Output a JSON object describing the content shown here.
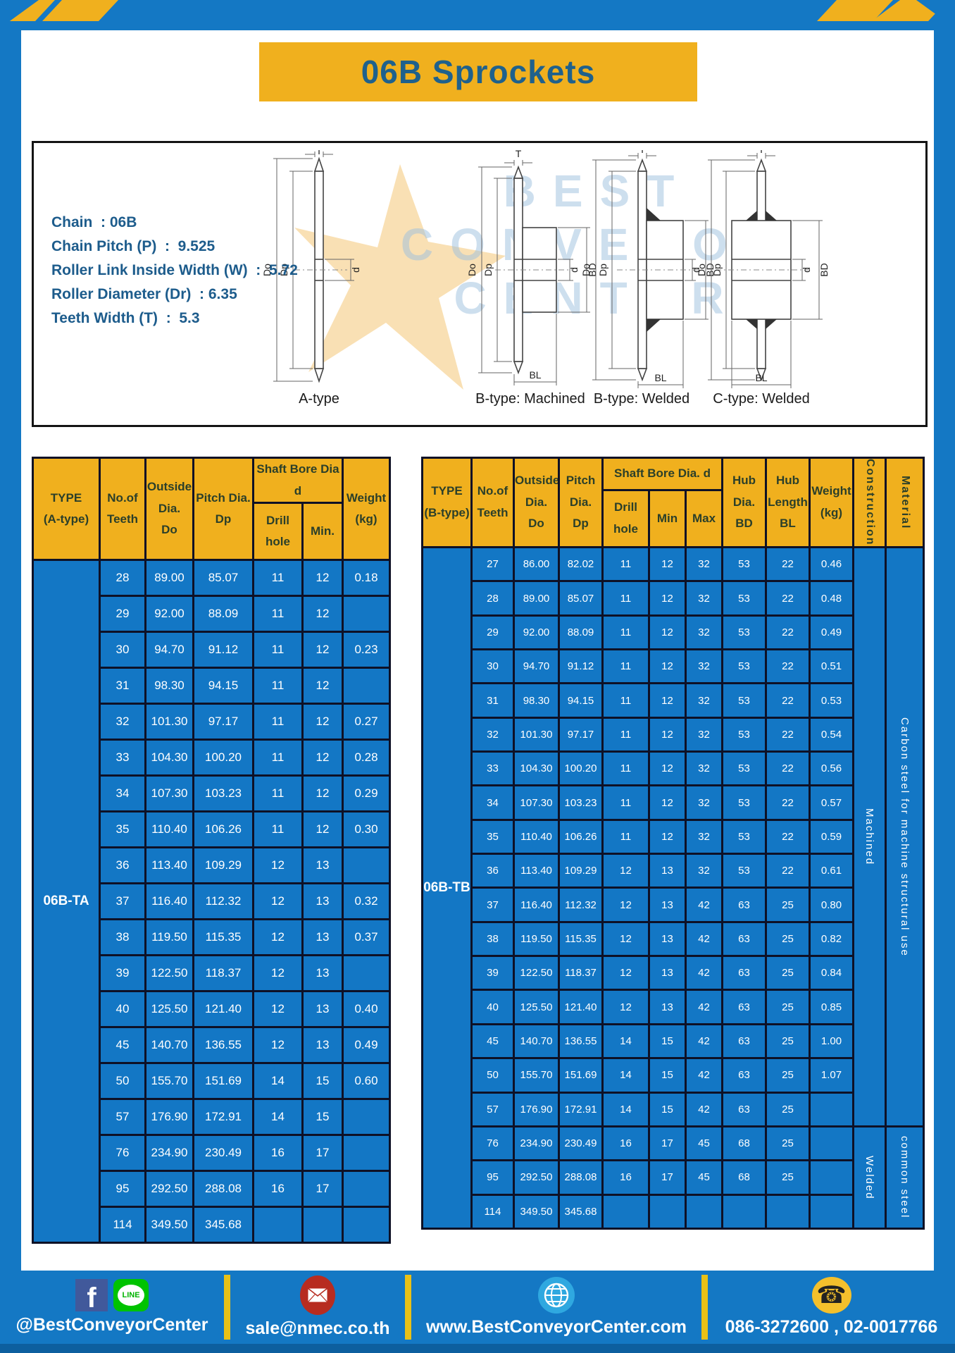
{
  "page_title": "06B Sprockets",
  "specs": {
    "lines": [
      "Chain  : 06B",
      "Chain Pitch (P)  :  9.525",
      "Roller Link Inside Width (W)  :  5.72",
      "Roller Diameter (Dr)  : 6.35",
      "Teeth Width (T)  :  5.3"
    ]
  },
  "watermark": {
    "line1": "BEST",
    "line2": "CONVEYOR",
    "line3": "CENTER"
  },
  "diagrams": {
    "labels": [
      "A-type",
      "B-type: Machined",
      "B-type: Welded",
      "C-type: Welded"
    ],
    "dims": {
      "do_label": "Do",
      "dp_label": "Dp",
      "d_label": "d",
      "bd_label": "BD",
      "bl_label": "BL",
      "t_label": "T"
    }
  },
  "table_a": {
    "type_label": "06B-TA",
    "headers": {
      "type": "TYPE\n(A-type)",
      "teeth": "No.of\nTeeth",
      "outside": "Outside\nDia.\nDo",
      "pitch": "Pitch Dia.\nDp",
      "shaft": "Shaft Bore Dia d",
      "drill": "Drill hole",
      "min": "Min.",
      "weight": "Weight\n(kg)"
    },
    "rows": [
      [
        "28",
        "89.00",
        "85.07",
        "11",
        "12",
        "0.18"
      ],
      [
        "29",
        "92.00",
        "88.09",
        "11",
        "12",
        ""
      ],
      [
        "30",
        "94.70",
        "91.12",
        "11",
        "12",
        "0.23"
      ],
      [
        "31",
        "98.30",
        "94.15",
        "11",
        "12",
        ""
      ],
      [
        "32",
        "101.30",
        "97.17",
        "11",
        "12",
        "0.27"
      ],
      [
        "33",
        "104.30",
        "100.20",
        "11",
        "12",
        "0.28"
      ],
      [
        "34",
        "107.30",
        "103.23",
        "11",
        "12",
        "0.29"
      ],
      [
        "35",
        "110.40",
        "106.26",
        "11",
        "12",
        "0.30"
      ],
      [
        "36",
        "113.40",
        "109.29",
        "12",
        "13",
        ""
      ],
      [
        "37",
        "116.40",
        "112.32",
        "12",
        "13",
        "0.32"
      ],
      [
        "38",
        "119.50",
        "115.35",
        "12",
        "13",
        "0.37"
      ],
      [
        "39",
        "122.50",
        "118.37",
        "12",
        "13",
        ""
      ],
      [
        "40",
        "125.50",
        "121.40",
        "12",
        "13",
        "0.40"
      ],
      [
        "45",
        "140.70",
        "136.55",
        "12",
        "13",
        "0.49"
      ],
      [
        "50",
        "155.70",
        "151.69",
        "14",
        "15",
        "0.60"
      ],
      [
        "57",
        "176.90",
        "172.91",
        "14",
        "15",
        ""
      ],
      [
        "76",
        "234.90",
        "230.49",
        "16",
        "17",
        ""
      ],
      [
        "95",
        "292.50",
        "288.08",
        "16",
        "17",
        ""
      ],
      [
        "114",
        "349.50",
        "345.68",
        "",
        "",
        ""
      ]
    ]
  },
  "table_b": {
    "type_label": "06B-TB",
    "headers": {
      "type": "TYPE\n(B-type)",
      "teeth": "No.of\nTeeth",
      "outside": "Outside\nDia.\nDo",
      "pitch": "Pitch\nDia.\nDp",
      "shaft": "Shaft Bore Dia. d",
      "drill": "Drill hole",
      "min": "Min",
      "max": "Max",
      "hub_dia": "Hub\nDia.\nBD",
      "hub_len": "Hub\nLength\nBL",
      "weight": "Weight\n(kg)",
      "construction": "Construction",
      "material": "Material"
    },
    "rows": [
      [
        "27",
        "86.00",
        "82.02",
        "11",
        "12",
        "32",
        "53",
        "22",
        "0.46"
      ],
      [
        "28",
        "89.00",
        "85.07",
        "11",
        "12",
        "32",
        "53",
        "22",
        "0.48"
      ],
      [
        "29",
        "92.00",
        "88.09",
        "11",
        "12",
        "32",
        "53",
        "22",
        "0.49"
      ],
      [
        "30",
        "94.70",
        "91.12",
        "11",
        "12",
        "32",
        "53",
        "22",
        "0.51"
      ],
      [
        "31",
        "98.30",
        "94.15",
        "11",
        "12",
        "32",
        "53",
        "22",
        "0.53"
      ],
      [
        "32",
        "101.30",
        "97.17",
        "11",
        "12",
        "32",
        "53",
        "22",
        "0.54"
      ],
      [
        "33",
        "104.30",
        "100.20",
        "11",
        "12",
        "32",
        "53",
        "22",
        "0.56"
      ],
      [
        "34",
        "107.30",
        "103.23",
        "11",
        "12",
        "32",
        "53",
        "22",
        "0.57"
      ],
      [
        "35",
        "110.40",
        "106.26",
        "11",
        "12",
        "32",
        "53",
        "22",
        "0.59"
      ],
      [
        "36",
        "113.40",
        "109.29",
        "12",
        "13",
        "32",
        "53",
        "22",
        "0.61"
      ],
      [
        "37",
        "116.40",
        "112.32",
        "12",
        "13",
        "42",
        "63",
        "25",
        "0.80"
      ],
      [
        "38",
        "119.50",
        "115.35",
        "12",
        "13",
        "42",
        "63",
        "25",
        "0.82"
      ],
      [
        "39",
        "122.50",
        "118.37",
        "12",
        "13",
        "42",
        "63",
        "25",
        "0.84"
      ],
      [
        "40",
        "125.50",
        "121.40",
        "12",
        "13",
        "42",
        "63",
        "25",
        "0.85"
      ],
      [
        "45",
        "140.70",
        "136.55",
        "14",
        "15",
        "42",
        "63",
        "25",
        "1.00"
      ],
      [
        "50",
        "155.70",
        "151.69",
        "14",
        "15",
        "42",
        "63",
        "25",
        "1.07"
      ],
      [
        "57",
        "176.90",
        "172.91",
        "14",
        "15",
        "42",
        "63",
        "25",
        ""
      ],
      [
        "76",
        "234.90",
        "230.49",
        "16",
        "17",
        "45",
        "68",
        "25",
        ""
      ],
      [
        "95",
        "292.50",
        "288.08",
        "16",
        "17",
        "45",
        "68",
        "25",
        ""
      ],
      [
        "114",
        "349.50",
        "345.68",
        "",
        "",
        "",
        "",
        "",
        ""
      ]
    ],
    "construction": [
      {
        "label": "Machined",
        "start": 0,
        "rows": 17
      },
      {
        "label": "Welded",
        "start": 17,
        "rows": 3
      }
    ],
    "material": [
      {
        "label": "Carbon steel for machine structural use",
        "start": 0,
        "rows": 17
      },
      {
        "label": "common steel",
        "start": 17,
        "rows": 3
      }
    ]
  },
  "footer": {
    "social": "@BestConveyorCenter",
    "email": "sale@nmec.co.th",
    "website": "www.BestConveyorCenter.com",
    "phone": "086-3272600 , 02-0017766",
    "line_label": "LINE",
    "facebook_letter": "f",
    "phone_glyph": "☎"
  },
  "colors": {
    "frame_blue": "#1478c4",
    "cell_blue": "#1377c5",
    "header_yellow": "#f0b01e",
    "accent_yellow": "#e9c117",
    "dark_border": "#0e1126",
    "title_blue": "#1f618c"
  }
}
